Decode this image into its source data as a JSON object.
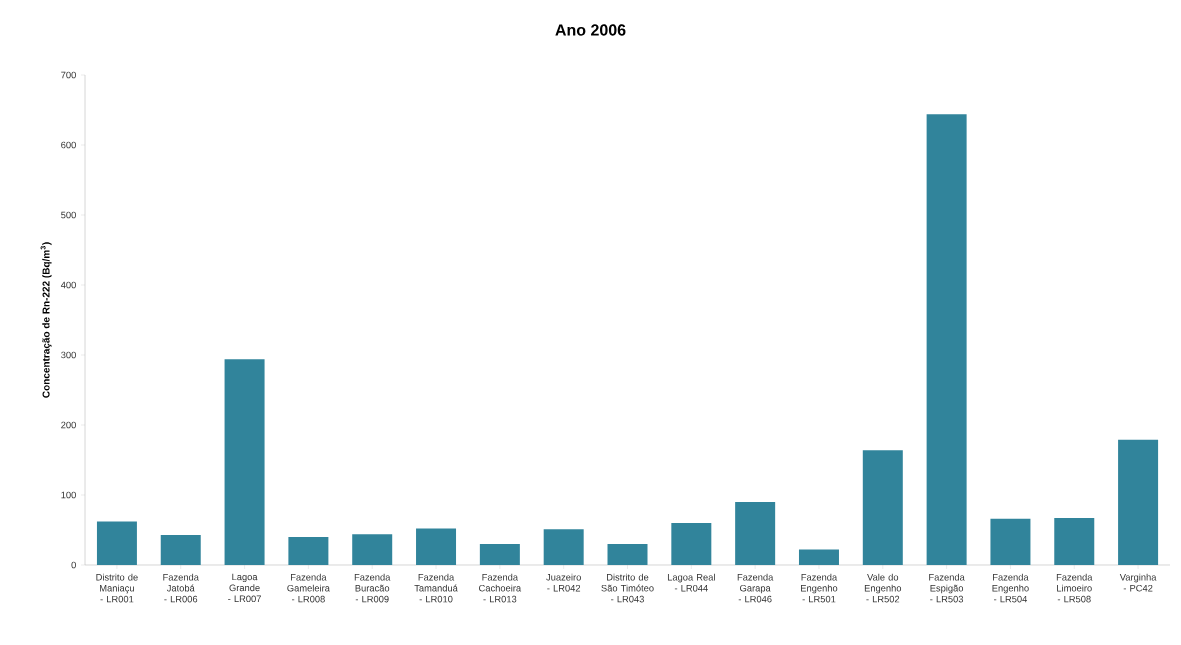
{
  "chart_data": {
    "type": "bar",
    "title": "Ano 2006",
    "ylabel": "Concentração de Rn-222 (Bq/m$^{3}$)",
    "categories": [
      "Distrito de Maniaçu - LR001",
      "Fazenda Jatobá - LR006",
      "Lagoa Grande - LR007",
      "Fazenda Gameleira - LR008",
      "Fazenda Buracão - LR009",
      "Fazenda Tamanduá - LR010",
      "Fazenda Cachoeira - LR013",
      "Juazeiro - LR042",
      "Distrito de São Timóteo - LR043",
      "Lagoa Real - LR044",
      "Fazenda Garapa - LR046",
      "Fazenda Engenho - LR501",
      "Vale do Engenho - LR502",
      "Fazenda Espigão - LR503",
      "Fazenda Engenho - LR504",
      "Fazenda Limoeiro - LR508",
      "Varginha - PC42"
    ],
    "values": [
      62,
      43,
      294,
      40,
      44,
      52,
      30,
      51,
      30,
      60,
      90,
      22,
      164,
      644,
      66,
      67,
      179
    ],
    "color": "#31849b",
    "ylim": [
      0,
      700
    ],
    "yticks": [
      0,
      100,
      200,
      300,
      400,
      500,
      600,
      700
    ],
    "grid": false
  }
}
